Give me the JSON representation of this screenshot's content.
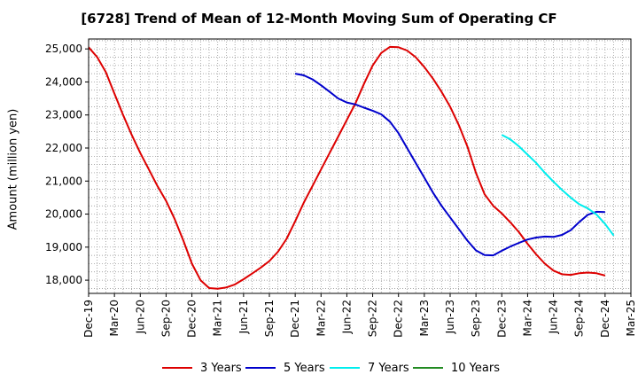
{
  "chart_data": {
    "type": "line",
    "title": "[6728]  Trend of Mean of 12-Month Moving Sum of Operating CF",
    "xlabel": "",
    "ylabel": "Amount (million yen)",
    "ylim": [
      17600,
      25300
    ],
    "yticks": [
      18000,
      19000,
      20000,
      21000,
      22000,
      23000,
      24000,
      25000
    ],
    "ytick_labels": [
      "18,000",
      "19,000",
      "20,000",
      "21,000",
      "22,000",
      "23,000",
      "24,000",
      "25,000"
    ],
    "xticks": [
      "Dec-19",
      "Mar-20",
      "Jun-20",
      "Sep-20",
      "Dec-20",
      "Mar-21",
      "Jun-21",
      "Sep-21",
      "Dec-21",
      "Mar-22",
      "Jun-22",
      "Sep-22",
      "Dec-22",
      "Mar-23",
      "Jun-23",
      "Sep-23",
      "Dec-23",
      "Mar-24",
      "Jun-24",
      "Sep-24",
      "Dec-24",
      "Mar-25"
    ],
    "grid": true,
    "legend_position": "bottom",
    "series": [
      {
        "name": "3 Years",
        "color": "#dd0000",
        "start_month": 0,
        "values": [
          25050,
          24750,
          24300,
          23650,
          23000,
          22400,
          21850,
          21350,
          20850,
          20400,
          19850,
          19200,
          18500,
          18000,
          17760,
          17740,
          17780,
          17870,
          18030,
          18200,
          18380,
          18580,
          18860,
          19250,
          19780,
          20350,
          20850,
          21350,
          21850,
          22350,
          22850,
          23350,
          23950,
          24500,
          24880,
          25060,
          25050,
          24950,
          24750,
          24450,
          24100,
          23700,
          23250,
          22700,
          22050,
          21250,
          20600,
          20250,
          20020,
          19750,
          19450,
          19100,
          18780,
          18500,
          18290,
          18180,
          18160,
          18210,
          18230,
          18210,
          18140
        ]
      },
      {
        "name": "5 Years",
        "color": "#0000cc",
        "start_month": 24,
        "values": [
          24250,
          24200,
          24080,
          23900,
          23700,
          23500,
          23380,
          23320,
          23220,
          23130,
          23020,
          22800,
          22450,
          22000,
          21550,
          21100,
          20650,
          20250,
          19900,
          19550,
          19200,
          18900,
          18760,
          18750,
          18890,
          19020,
          19130,
          19230,
          19290,
          19320,
          19310,
          19370,
          19510,
          19760,
          19980,
          20070,
          20060
        ]
      },
      {
        "name": "7 Years",
        "color": "#00eeee",
        "start_month": 48,
        "values": [
          22400,
          22260,
          22050,
          21800,
          21550,
          21250,
          20980,
          20730,
          20500,
          20300,
          20170,
          19990,
          19700,
          19350
        ]
      },
      {
        "name": "10 Years",
        "color": "#228b22",
        "start_month": 0,
        "values": []
      }
    ]
  }
}
